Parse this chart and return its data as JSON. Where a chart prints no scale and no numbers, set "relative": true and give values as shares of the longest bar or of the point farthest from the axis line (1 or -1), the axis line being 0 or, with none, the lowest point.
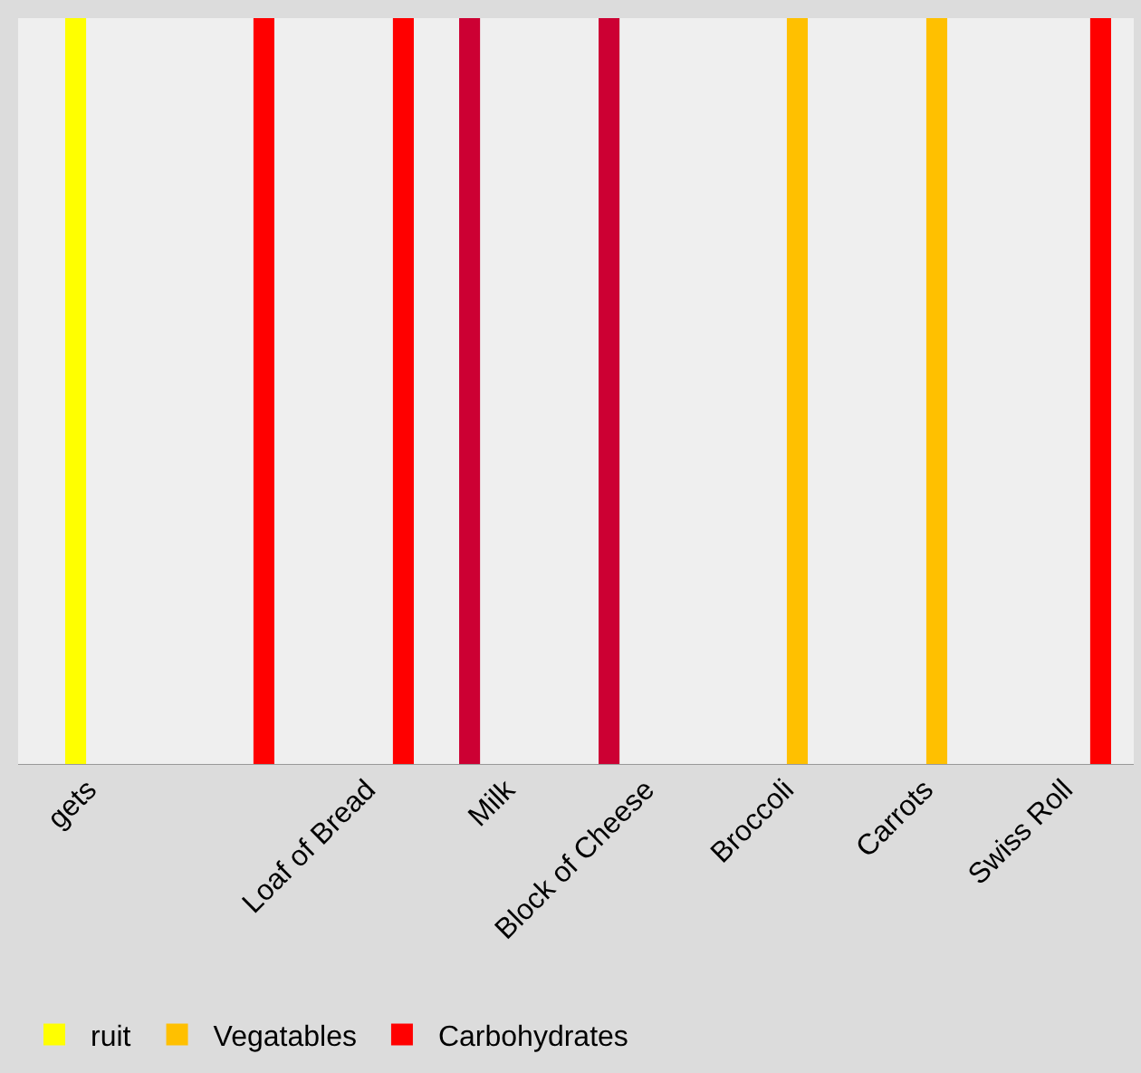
{
  "chart_data": {
    "type": "bar",
    "relative": true,
    "legend": "bottom",
    "grid": false,
    "categories": [
      "gets",
      null,
      "Loaf of Bread",
      "Milk",
      "Block of Cheese",
      "Broccoli",
      "Carrots",
      "Swiss Roll"
    ],
    "series": [
      {
        "color": "#cc0033",
        "values": [
          0,
          0,
          0,
          1,
          1,
          0,
          0,
          0
        ]
      },
      {
        "name": "ruit",
        "color": "#ffff00",
        "values": [
          1,
          0,
          0,
          0,
          0,
          0,
          0,
          0
        ]
      },
      {
        "name": "Vegatables",
        "color": "#ffc000",
        "values": [
          0,
          0,
          0,
          0,
          0,
          1,
          1,
          0
        ]
      },
      {
        "name": "Carbohydrates",
        "color": "#ff0000",
        "values": [
          0,
          1,
          1,
          0,
          0,
          0,
          0,
          1
        ]
      }
    ]
  }
}
